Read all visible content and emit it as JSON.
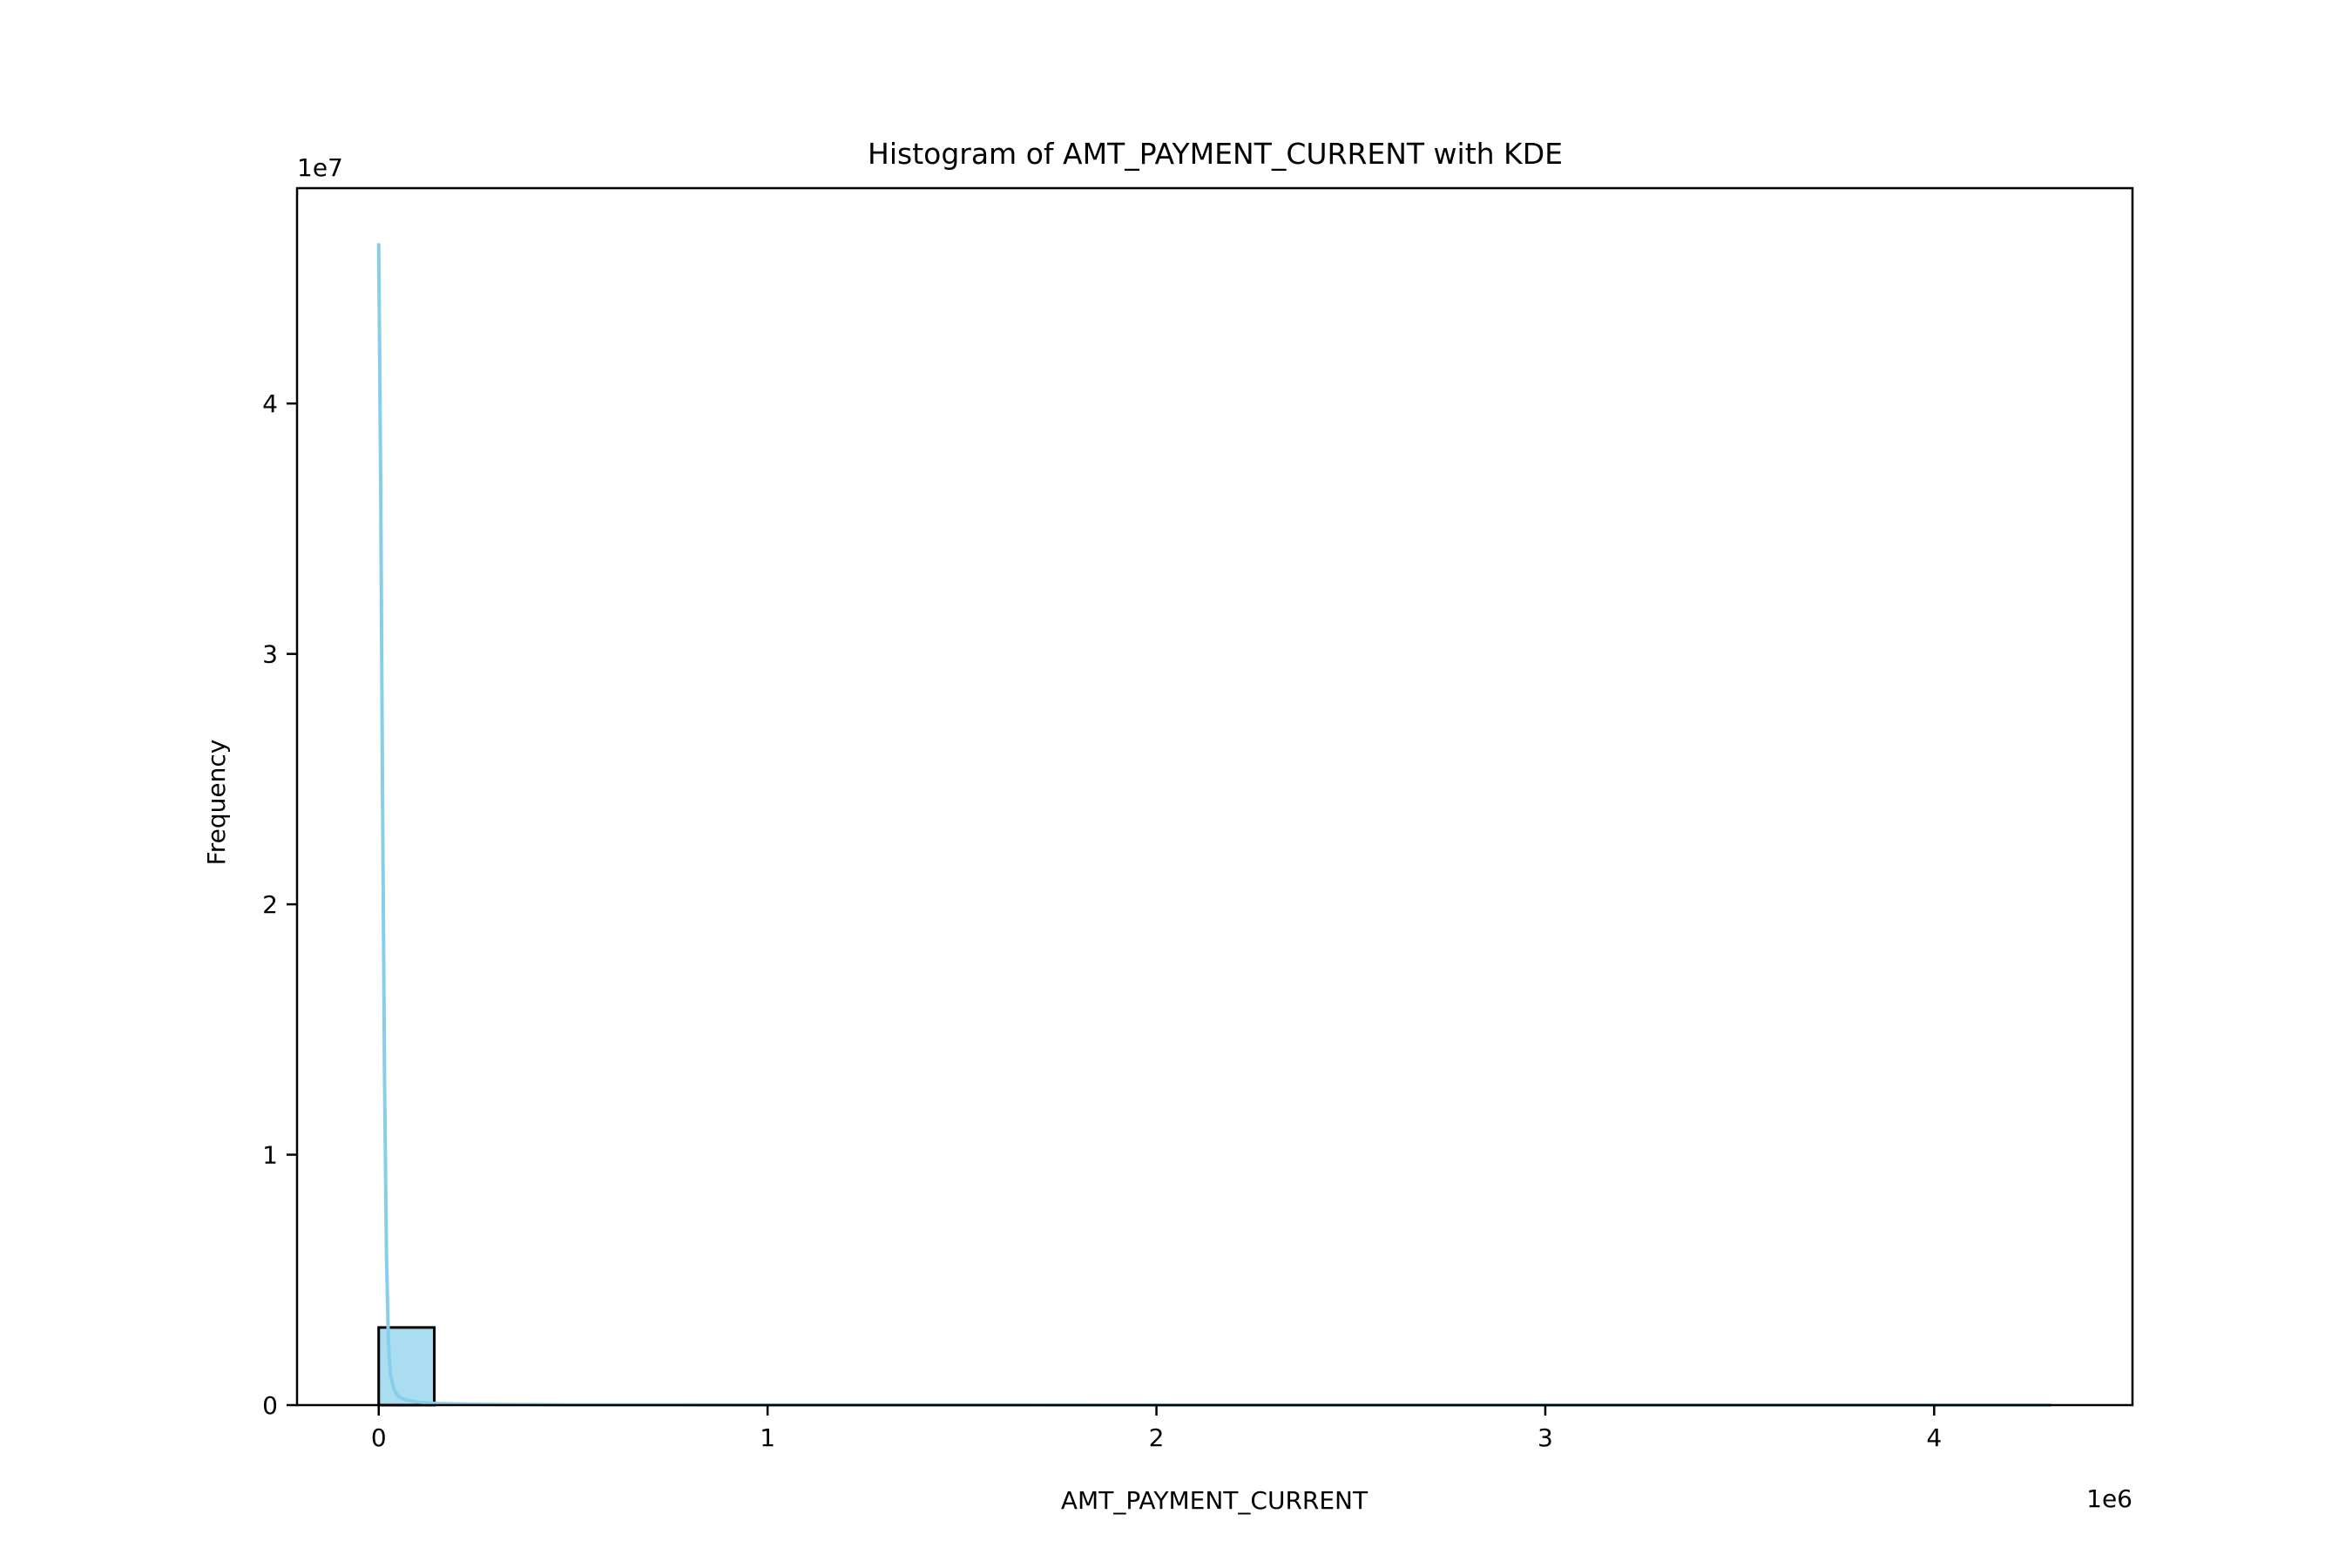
{
  "chart_data": {
    "type": "bar",
    "title": "Histogram of AMT_PAYMENT_CURRENT with KDE",
    "xlabel": "AMT_PAYMENT_CURRENT",
    "ylabel": "Frequency",
    "x_offset_label": "1e6",
    "y_offset_label": "1e7",
    "xlim": [
      -0.21,
      4.51
    ],
    "ylim": [
      0,
      4.86
    ],
    "x_ticks": [
      {
        "value": 0,
        "label": "0"
      },
      {
        "value": 1,
        "label": "1"
      },
      {
        "value": 2,
        "label": "2"
      },
      {
        "value": 3,
        "label": "3"
      },
      {
        "value": 4,
        "label": "4"
      }
    ],
    "y_ticks": [
      {
        "value": 0,
        "label": "0"
      },
      {
        "value": 1,
        "label": "1"
      },
      {
        "value": 2,
        "label": "2"
      },
      {
        "value": 3,
        "label": "3"
      },
      {
        "value": 4,
        "label": "4"
      }
    ],
    "bins": [
      {
        "x0": 0.0,
        "x1": 0.143,
        "count": 0.31
      },
      {
        "x0": 0.143,
        "x1": 0.286,
        "count": 0.0003
      },
      {
        "x0": 0.286,
        "x1": 0.429,
        "count": 5e-05
      }
    ],
    "kde": {
      "x": [
        0.0,
        0.005,
        0.01,
        0.015,
        0.02,
        0.025,
        0.03,
        0.04,
        0.05,
        0.07,
        0.1,
        0.15,
        0.25,
        0.5,
        1.0,
        2.0,
        3.0,
        4.0,
        4.3
      ],
      "y": [
        4.64,
        3.7,
        2.4,
        1.3,
        0.6,
        0.25,
        0.12,
        0.06,
        0.035,
        0.02,
        0.012,
        0.006,
        0.003,
        0.001,
        0.0004,
        0.0001,
        5e-05,
        2e-05,
        1e-05
      ]
    },
    "colors": {
      "bar_fill": "#87ceeb",
      "bar_edge": "#000000",
      "kde_line": "#87ceeb",
      "axes": "#000000"
    },
    "grid": false
  }
}
